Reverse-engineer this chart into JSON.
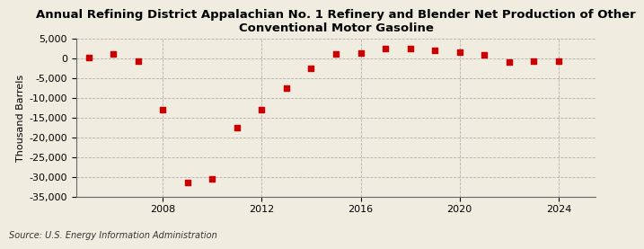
{
  "title": "Annual Refining District Appalachian No. 1 Refinery and Blender Net Production of Other\nConventional Motor Gasoline",
  "ylabel": "Thousand Barrels",
  "source": "Source: U.S. Energy Information Administration",
  "background_color": "#f0ece0",
  "plot_bg_color": "#f0ece0",
  "years": [
    2005,
    2006,
    2007,
    2008,
    2009,
    2010,
    2011,
    2012,
    2013,
    2014,
    2015,
    2016,
    2017,
    2018,
    2019,
    2020,
    2021,
    2022,
    2023,
    2024
  ],
  "values": [
    300,
    1200,
    -600,
    -13000,
    -31500,
    -30500,
    -17500,
    -13000,
    -7500,
    -2500,
    1200,
    1300,
    2500,
    2500,
    2000,
    1500,
    900,
    -1000,
    -700,
    -700
  ],
  "marker_color": "#cc0000",
  "ylim": [
    -35000,
    5000
  ],
  "yticks": [
    5000,
    0,
    -5000,
    -10000,
    -15000,
    -20000,
    -25000,
    -30000,
    -35000
  ],
  "xticks": [
    2008,
    2012,
    2016,
    2020,
    2024
  ],
  "grid_color": "#b0b0b0",
  "title_fontsize": 9.5,
  "axis_fontsize": 8,
  "source_fontsize": 7
}
